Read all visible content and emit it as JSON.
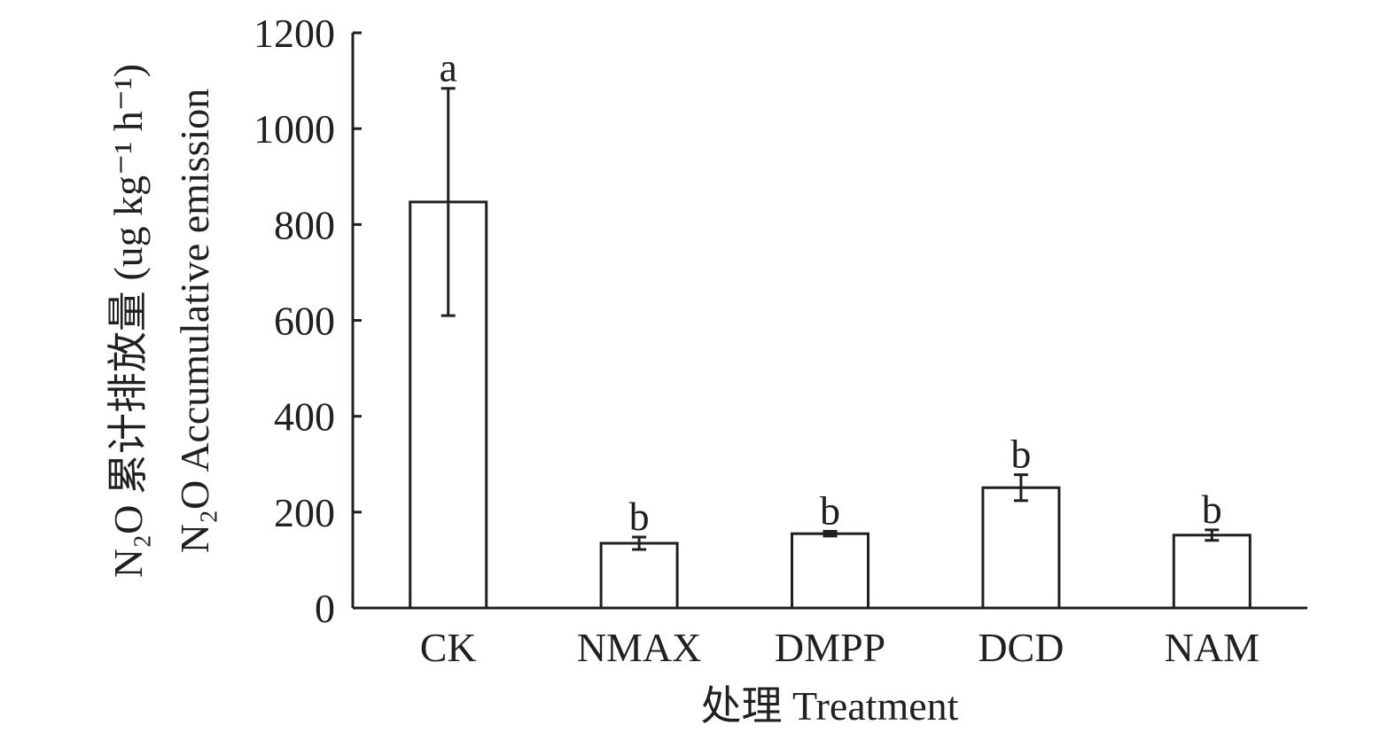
{
  "chart_data": {
    "type": "bar",
    "title": "",
    "categories": [
      "CK",
      "NMAX",
      "DMPP",
      "DCD",
      "NAM"
    ],
    "values": [
      847,
      135,
      155,
      251,
      152
    ],
    "errors": [
      237,
      13,
      5,
      27,
      11
    ],
    "significance_letters": [
      "a",
      "b",
      "b",
      "b",
      "b"
    ],
    "xlabel": "处理 Treatment",
    "ylabel_line1": "N₂O 累计排放量 (ug kg⁻¹ h⁻¹)",
    "ylabel_line2": "N₂O Accumulative emission",
    "ylim": [
      0,
      1200
    ],
    "yticks": [
      "0",
      "200",
      "400",
      "600",
      "800",
      "1000",
      "1200"
    ],
    "grid": false,
    "bar_fill": "#ffffff",
    "line_color": "#231f20"
  }
}
